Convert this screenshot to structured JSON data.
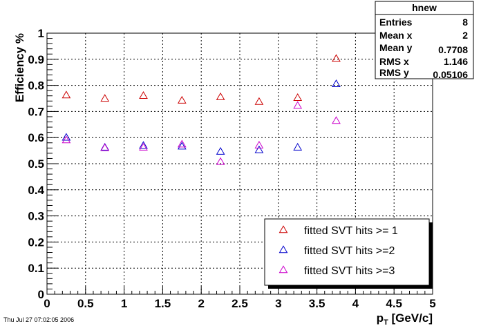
{
  "timestamp": "Thu Jul 27 07:02:05 2006",
  "stats_box": {
    "title": "hnew",
    "rows": [
      {
        "label": "Entries",
        "value": "8"
      },
      {
        "label": "Mean x",
        "value": "2"
      },
      {
        "label": "Mean y",
        "value": "0.7708"
      },
      {
        "label": "RMS x",
        "value": "1.146"
      },
      {
        "label": "RMS y",
        "value": "0.05106"
      }
    ]
  },
  "chart_data": {
    "type": "scatter",
    "title": "",
    "xlabel": "[GeV/c]",
    "xlabel_prefix": "p",
    "xlabel_subscript": "T",
    "ylabel": "Efficiency %",
    "xlim": [
      0,
      5
    ],
    "ylim": [
      0,
      1
    ],
    "xticks": [
      "0",
      "0.5",
      "1",
      "1.5",
      "2",
      "2.5",
      "3",
      "3.5",
      "4",
      "4.5",
      "5"
    ],
    "yticks": [
      "0",
      "0.1",
      "0.2",
      "0.3",
      "0.4",
      "0.5",
      "0.6",
      "0.7",
      "0.8",
      "0.9",
      "1"
    ],
    "grid": true,
    "legend_position": "bottom-right",
    "marker": "open-triangle",
    "series": [
      {
        "name": "fitted SVT hits >= 1",
        "color": "#cc0000",
        "x": [
          0.25,
          0.75,
          1.25,
          1.75,
          2.25,
          2.75,
          3.25,
          3.75
        ],
        "y": [
          0.762,
          0.749,
          0.76,
          0.742,
          0.755,
          0.737,
          0.752,
          0.902
        ]
      },
      {
        "name": "fitted SVT hits >=2",
        "color": "#0000cc",
        "x": [
          0.25,
          0.75,
          1.25,
          1.75,
          2.25,
          2.75,
          3.25,
          3.75
        ],
        "y": [
          0.6,
          0.562,
          0.569,
          0.566,
          0.546,
          0.552,
          0.562,
          0.805
        ]
      },
      {
        "name": "fitted SVT hits >=3",
        "color": "#cc00cc",
        "x": [
          0.25,
          0.75,
          1.25,
          1.75,
          2.25,
          2.75,
          3.25,
          3.75
        ],
        "y": [
          0.59,
          0.56,
          0.562,
          0.574,
          0.507,
          0.57,
          0.722,
          0.664
        ]
      }
    ]
  }
}
